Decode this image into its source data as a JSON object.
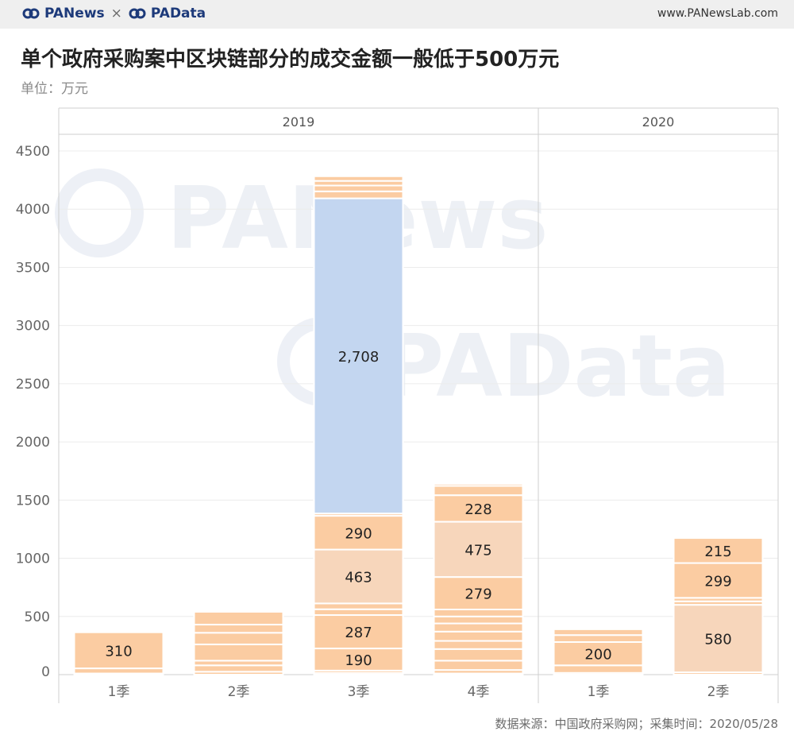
{
  "header": {
    "brand_left": "PANews",
    "brand_sep": "×",
    "brand_right": "PAData",
    "site": "www.PANewsLab.com"
  },
  "title": "单个政府采购案中区块链部分的成交金额一般低于500万元",
  "unit": "单位：万元",
  "source": "数据来源：中国政府采购网；采集时间：2020/05/28",
  "watermarks": [
    "PANews",
    "PAData"
  ],
  "chart_data": {
    "type": "bar",
    "stacked": true,
    "ylim": [
      0,
      4500
    ],
    "yticks": [
      "0",
      "500",
      "1000",
      "1500",
      "2000",
      "2500",
      "3000",
      "3500",
      "4000",
      "4500"
    ],
    "grid": true,
    "groups": [
      {
        "year": "2019",
        "categories": [
          "1季",
          "2季",
          "3季",
          "4季"
        ]
      },
      {
        "year": "2020",
        "categories": [
          "1季",
          "2季"
        ]
      }
    ],
    "colors": {
      "default": "#fbcca2",
      "light": "#f7d6bb",
      "highlight": "#c3d6f0"
    },
    "bars": [
      {
        "year": "2019",
        "category": "1季",
        "segments": [
          {
            "value": 10
          },
          {
            "value": 44
          },
          {
            "value": 310,
            "label": "310"
          }
        ]
      },
      {
        "year": "2019",
        "category": "2季",
        "segments": [
          {
            "value": 25
          },
          {
            "value": 55
          },
          {
            "value": 40
          },
          {
            "value": 140
          },
          {
            "value": 100
          },
          {
            "value": 70
          },
          {
            "value": 110
          }
        ]
      },
      {
        "year": "2019",
        "category": "3季",
        "segments": [
          {
            "value": 15
          },
          {
            "value": 20
          },
          {
            "value": 190,
            "label": "190"
          },
          {
            "value": 287,
            "label": "287"
          },
          {
            "value": 50
          },
          {
            "value": 50
          },
          {
            "value": 463,
            "label": "463",
            "tone": "light"
          },
          {
            "value": 290,
            "label": "290"
          },
          {
            "value": 20
          },
          {
            "value": 2708,
            "label": "2,708",
            "tone": "highlight"
          },
          {
            "value": 60
          },
          {
            "value": 50
          },
          {
            "value": 40
          },
          {
            "value": 40
          }
        ]
      },
      {
        "year": "2019",
        "category": "4季",
        "segments": [
          {
            "value": 10
          },
          {
            "value": 30
          },
          {
            "value": 80
          },
          {
            "value": 100
          },
          {
            "value": 70
          },
          {
            "value": 80
          },
          {
            "value": 70
          },
          {
            "value": 60
          },
          {
            "value": 60
          },
          {
            "value": 279,
            "label": "279"
          },
          {
            "value": 475,
            "label": "475",
            "tone": "light"
          },
          {
            "value": 228,
            "label": "228"
          },
          {
            "value": 80
          },
          {
            "value": 18
          }
        ]
      },
      {
        "year": "2020",
        "category": "1季",
        "segments": [
          {
            "value": 15
          },
          {
            "value": 65
          },
          {
            "value": 200,
            "label": "200"
          },
          {
            "value": 60
          },
          {
            "value": 50
          }
        ]
      },
      {
        "year": "2020",
        "category": "2季",
        "segments": [
          {
            "value": 20
          },
          {
            "value": 580,
            "label": "580",
            "tone": "light"
          },
          {
            "value": 30
          },
          {
            "value": 30
          },
          {
            "value": 299,
            "label": "299"
          },
          {
            "value": 215,
            "label": "215"
          }
        ]
      }
    ]
  }
}
